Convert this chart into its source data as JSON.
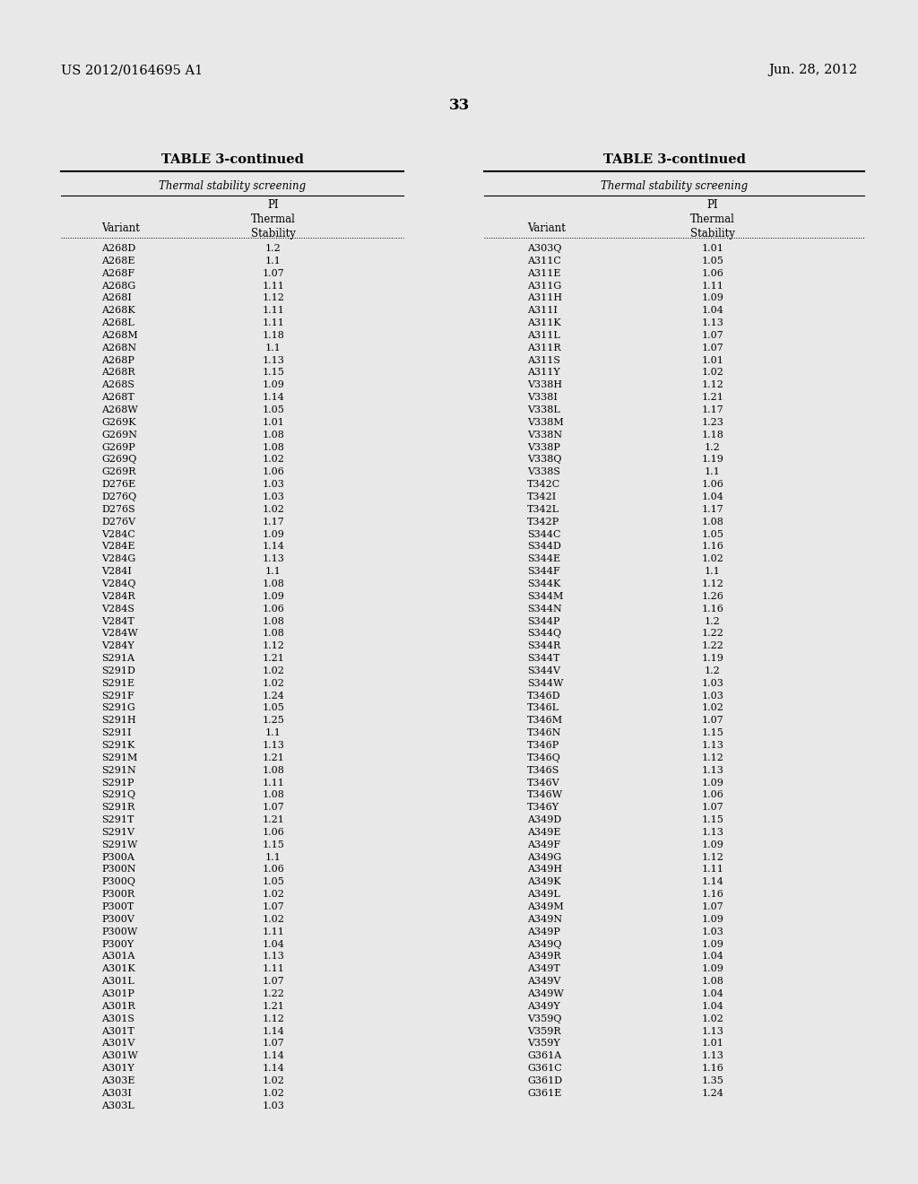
{
  "header_left": "US 2012/0164695 A1",
  "header_right": "Jun. 28, 2012",
  "page_number": "33",
  "table_title": "TABLE 3-continued",
  "thermal_label": "Thermal stability screening",
  "col_variant": "Variant",
  "col_pi": "PI\nThermal\nStability",
  "bg_color": "#e8e8e8",
  "left_data": [
    [
      "A268D",
      "1.2"
    ],
    [
      "A268E",
      "1.1"
    ],
    [
      "A268F",
      "1.07"
    ],
    [
      "A268G",
      "1.11"
    ],
    [
      "A268I",
      "1.12"
    ],
    [
      "A268K",
      "1.11"
    ],
    [
      "A268L",
      "1.11"
    ],
    [
      "A268M",
      "1.18"
    ],
    [
      "A268N",
      "1.1"
    ],
    [
      "A268P",
      "1.13"
    ],
    [
      "A268R",
      "1.15"
    ],
    [
      "A268S",
      "1.09"
    ],
    [
      "A268T",
      "1.14"
    ],
    [
      "A268W",
      "1.05"
    ],
    [
      "G269K",
      "1.01"
    ],
    [
      "G269N",
      "1.08"
    ],
    [
      "G269P",
      "1.08"
    ],
    [
      "G269Q",
      "1.02"
    ],
    [
      "G269R",
      "1.06"
    ],
    [
      "D276E",
      "1.03"
    ],
    [
      "D276Q",
      "1.03"
    ],
    [
      "D276S",
      "1.02"
    ],
    [
      "D276V",
      "1.17"
    ],
    [
      "V284C",
      "1.09"
    ],
    [
      "V284E",
      "1.14"
    ],
    [
      "V284G",
      "1.13"
    ],
    [
      "V284I",
      "1.1"
    ],
    [
      "V284Q",
      "1.08"
    ],
    [
      "V284R",
      "1.09"
    ],
    [
      "V284S",
      "1.06"
    ],
    [
      "V284T",
      "1.08"
    ],
    [
      "V284W",
      "1.08"
    ],
    [
      "V284Y",
      "1.12"
    ],
    [
      "S291A",
      "1.21"
    ],
    [
      "S291D",
      "1.02"
    ],
    [
      "S291E",
      "1.02"
    ],
    [
      "S291F",
      "1.24"
    ],
    [
      "S291G",
      "1.05"
    ],
    [
      "S291H",
      "1.25"
    ],
    [
      "S291I",
      "1.1"
    ],
    [
      "S291K",
      "1.13"
    ],
    [
      "S291M",
      "1.21"
    ],
    [
      "S291N",
      "1.08"
    ],
    [
      "S291P",
      "1.11"
    ],
    [
      "S291Q",
      "1.08"
    ],
    [
      "S291R",
      "1.07"
    ],
    [
      "S291T",
      "1.21"
    ],
    [
      "S291V",
      "1.06"
    ],
    [
      "S291W",
      "1.15"
    ],
    [
      "P300A",
      "1.1"
    ],
    [
      "P300N",
      "1.06"
    ],
    [
      "P300Q",
      "1.05"
    ],
    [
      "P300R",
      "1.02"
    ],
    [
      "P300T",
      "1.07"
    ],
    [
      "P300V",
      "1.02"
    ],
    [
      "P300W",
      "1.11"
    ],
    [
      "P300Y",
      "1.04"
    ],
    [
      "A301A",
      "1.13"
    ],
    [
      "A301K",
      "1.11"
    ],
    [
      "A301L",
      "1.07"
    ],
    [
      "A301P",
      "1.22"
    ],
    [
      "A301R",
      "1.21"
    ],
    [
      "A301S",
      "1.12"
    ],
    [
      "A301T",
      "1.14"
    ],
    [
      "A301V",
      "1.07"
    ],
    [
      "A301W",
      "1.14"
    ],
    [
      "A301Y",
      "1.14"
    ],
    [
      "A303E",
      "1.02"
    ],
    [
      "A303I",
      "1.02"
    ],
    [
      "A303L",
      "1.03"
    ]
  ],
  "right_data": [
    [
      "A303Q",
      "1.01"
    ],
    [
      "A311C",
      "1.05"
    ],
    [
      "A311E",
      "1.06"
    ],
    [
      "A311G",
      "1.11"
    ],
    [
      "A311H",
      "1.09"
    ],
    [
      "A311I",
      "1.04"
    ],
    [
      "A311K",
      "1.13"
    ],
    [
      "A311L",
      "1.07"
    ],
    [
      "A311R",
      "1.07"
    ],
    [
      "A311S",
      "1.01"
    ],
    [
      "A311Y",
      "1.02"
    ],
    [
      "V338H",
      "1.12"
    ],
    [
      "V338I",
      "1.21"
    ],
    [
      "V338L",
      "1.17"
    ],
    [
      "V338M",
      "1.23"
    ],
    [
      "V338N",
      "1.18"
    ],
    [
      "V338P",
      "1.2"
    ],
    [
      "V338Q",
      "1.19"
    ],
    [
      "V338S",
      "1.1"
    ],
    [
      "T342C",
      "1.06"
    ],
    [
      "T342I",
      "1.04"
    ],
    [
      "T342L",
      "1.17"
    ],
    [
      "T342P",
      "1.08"
    ],
    [
      "S344C",
      "1.05"
    ],
    [
      "S344D",
      "1.16"
    ],
    [
      "S344E",
      "1.02"
    ],
    [
      "S344F",
      "1.1"
    ],
    [
      "S344K",
      "1.12"
    ],
    [
      "S344M",
      "1.26"
    ],
    [
      "S344N",
      "1.16"
    ],
    [
      "S344P",
      "1.2"
    ],
    [
      "S344Q",
      "1.22"
    ],
    [
      "S344R",
      "1.22"
    ],
    [
      "S344T",
      "1.19"
    ],
    [
      "S344V",
      "1.2"
    ],
    [
      "S344W",
      "1.03"
    ],
    [
      "T346D",
      "1.03"
    ],
    [
      "T346L",
      "1.02"
    ],
    [
      "T346M",
      "1.07"
    ],
    [
      "T346N",
      "1.15"
    ],
    [
      "T346P",
      "1.13"
    ],
    [
      "T346Q",
      "1.12"
    ],
    [
      "T346S",
      "1.13"
    ],
    [
      "T346V",
      "1.09"
    ],
    [
      "T346W",
      "1.06"
    ],
    [
      "T346Y",
      "1.07"
    ],
    [
      "A349D",
      "1.15"
    ],
    [
      "A349E",
      "1.13"
    ],
    [
      "A349F",
      "1.09"
    ],
    [
      "A349G",
      "1.12"
    ],
    [
      "A349H",
      "1.11"
    ],
    [
      "A349K",
      "1.14"
    ],
    [
      "A349L",
      "1.16"
    ],
    [
      "A349M",
      "1.07"
    ],
    [
      "A349N",
      "1.09"
    ],
    [
      "A349P",
      "1.03"
    ],
    [
      "A349Q",
      "1.09"
    ],
    [
      "A349R",
      "1.04"
    ],
    [
      "A349T",
      "1.09"
    ],
    [
      "A349V",
      "1.08"
    ],
    [
      "A349W",
      "1.04"
    ],
    [
      "A349Y",
      "1.04"
    ],
    [
      "V359Q",
      "1.02"
    ],
    [
      "V359R",
      "1.13"
    ],
    [
      "V359Y",
      "1.01"
    ],
    [
      "G361A",
      "1.13"
    ],
    [
      "G361C",
      "1.16"
    ],
    [
      "G361D",
      "1.35"
    ],
    [
      "G361E",
      "1.24"
    ]
  ]
}
